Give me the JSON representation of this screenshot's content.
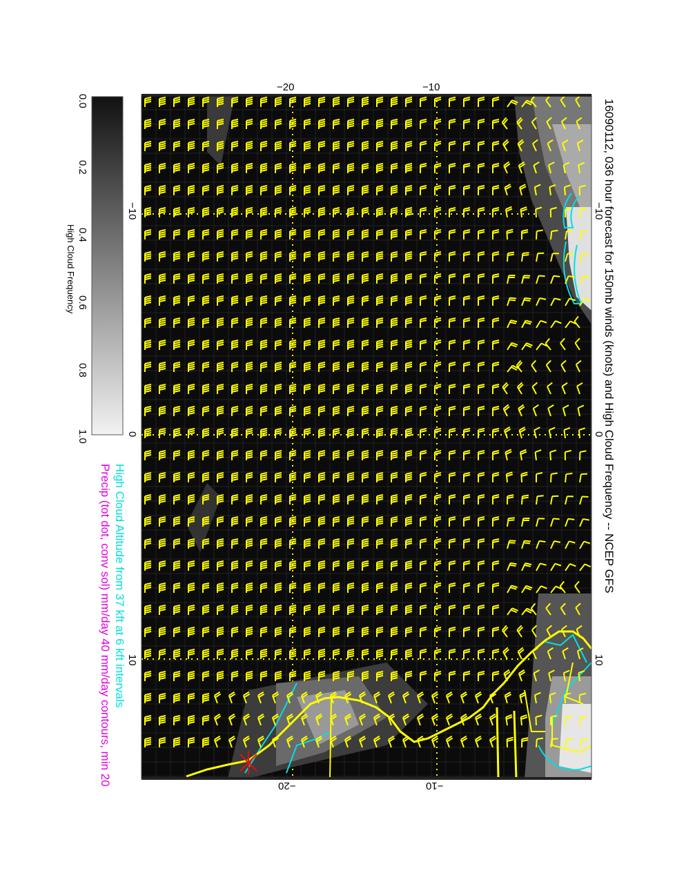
{
  "title": "16090112, 036 hour forecast for 150mb winds (knots) and High Cloud Frequency -- NCEP GFS",
  "legend": {
    "cloud_altitude": "High Cloud Altitude from 37 kft at 6 kft intervals",
    "precip": "Precip (tot dot, conv sol) mm/day 40 mm/day contours, min 20"
  },
  "colorbar": {
    "title": "High Cloud Frequency",
    "ticks": [
      "0.0",
      "0.2",
      "0.4",
      "0.6",
      "0.8",
      "1.0"
    ]
  },
  "axes": {
    "top_ticks": [
      "−20",
      "−10"
    ],
    "bottom_ticks": [
      "−20",
      "−10"
    ],
    "left_ticks": [
      "−10",
      "0",
      "10"
    ],
    "right_ticks": [
      "−10",
      "0",
      "10"
    ]
  },
  "colors": {
    "barbs": "#ffff00",
    "cloud_contours": "#00e0e0",
    "precip": "#e000e0",
    "coastline": "#ffff00",
    "storm_marker": "#e01010",
    "background": "#0b0b0b"
  }
}
